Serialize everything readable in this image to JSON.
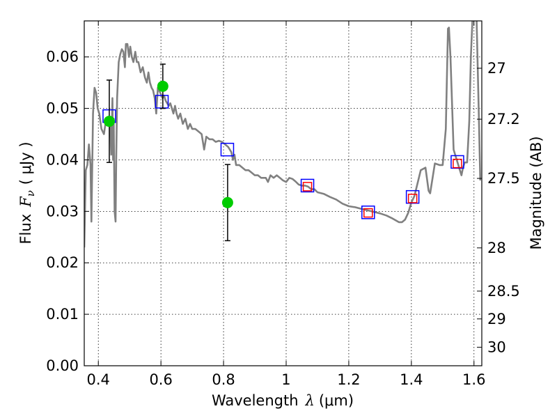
{
  "chart_data": {
    "type": "scatter",
    "xlabel": {
      "prefix": "Wavelength",
      "symbol": "λ",
      "unit": "(μm)"
    },
    "ylabel": {
      "prefix": "Flux",
      "symbol": "F",
      "subscript": "ν",
      "unit": "( μJy )"
    },
    "y2label": "Magnitude (AB)",
    "xlim": [
      0.355,
      1.625
    ],
    "ylim": [
      0.0,
      0.067
    ],
    "grid": true,
    "x_ticks": [
      0.4,
      0.6,
      0.8,
      1.0,
      1.2,
      1.4,
      1.6
    ],
    "x_tick_labels": [
      "0.4",
      "0.6",
      "0.8",
      "1",
      "1.2",
      "1.4",
      "1.6"
    ],
    "y_ticks": [
      0.0,
      0.01,
      0.02,
      0.03,
      0.04,
      0.05,
      0.06
    ],
    "y_tick_labels": [
      "0.00",
      "0.01",
      "0.02",
      "0.03",
      "0.04",
      "0.05",
      "0.06"
    ],
    "y2_ticks": [
      {
        "label": "27",
        "flux": 0.0578
      },
      {
        "label": "27.2",
        "flux": 0.0479
      },
      {
        "label": "27.5",
        "flux": 0.0364
      },
      {
        "label": "28",
        "flux": 0.0229
      },
      {
        "label": "28.5",
        "flux": 0.0145
      },
      {
        "label": "29",
        "flux": 0.0091
      },
      {
        "label": "30",
        "flux": 0.0036
      }
    ],
    "series": [
      {
        "kind": "line",
        "color": "#808080",
        "points": [
          [
            0.355,
            0.023
          ],
          [
            0.36,
            0.038
          ],
          [
            0.365,
            0.039
          ],
          [
            0.37,
            0.043
          ],
          [
            0.375,
            0.039
          ],
          [
            0.378,
            0.028
          ],
          [
            0.383,
            0.049
          ],
          [
            0.388,
            0.054
          ],
          [
            0.393,
            0.053
          ],
          [
            0.398,
            0.05
          ],
          [
            0.403,
            0.049
          ],
          [
            0.41,
            0.046
          ],
          [
            0.418,
            0.045
          ],
          [
            0.425,
            0.048
          ],
          [
            0.433,
            0.048
          ],
          [
            0.438,
            0.047
          ],
          [
            0.441,
            0.041
          ],
          [
            0.445,
            0.052
          ],
          [
            0.447,
            0.04
          ],
          [
            0.449,
            0.048
          ],
          [
            0.452,
            0.03
          ],
          [
            0.455,
            0.028
          ],
          [
            0.457,
            0.04
          ],
          [
            0.46,
            0.052
          ],
          [
            0.465,
            0.059
          ],
          [
            0.47,
            0.0605
          ],
          [
            0.475,
            0.0615
          ],
          [
            0.48,
            0.061
          ],
          [
            0.485,
            0.058
          ],
          [
            0.488,
            0.0625
          ],
          [
            0.493,
            0.0625
          ],
          [
            0.498,
            0.06
          ],
          [
            0.502,
            0.062
          ],
          [
            0.507,
            0.06
          ],
          [
            0.512,
            0.059
          ],
          [
            0.518,
            0.061
          ],
          [
            0.523,
            0.059
          ],
          [
            0.528,
            0.059
          ],
          [
            0.535,
            0.057
          ],
          [
            0.542,
            0.058
          ],
          [
            0.549,
            0.056
          ],
          [
            0.555,
            0.055
          ],
          [
            0.56,
            0.057
          ],
          [
            0.565,
            0.055
          ],
          [
            0.57,
            0.054
          ],
          [
            0.575,
            0.0535
          ],
          [
            0.58,
            0.052
          ],
          [
            0.585,
            0.049
          ],
          [
            0.59,
            0.054
          ],
          [
            0.598,
            0.053
          ],
          [
            0.605,
            0.052
          ],
          [
            0.61,
            0.0525
          ],
          [
            0.615,
            0.0515
          ],
          [
            0.62,
            0.051
          ],
          [
            0.625,
            0.0505
          ],
          [
            0.63,
            0.051
          ],
          [
            0.635,
            0.05
          ],
          [
            0.64,
            0.049
          ],
          [
            0.645,
            0.0505
          ],
          [
            0.65,
            0.049
          ],
          [
            0.655,
            0.048
          ],
          [
            0.662,
            0.049
          ],
          [
            0.67,
            0.047
          ],
          [
            0.678,
            0.048
          ],
          [
            0.686,
            0.046
          ],
          [
            0.693,
            0.047
          ],
          [
            0.7,
            0.046
          ],
          [
            0.71,
            0.046
          ],
          [
            0.72,
            0.0455
          ],
          [
            0.73,
            0.045
          ],
          [
            0.738,
            0.042
          ],
          [
            0.745,
            0.0445
          ],
          [
            0.755,
            0.044
          ],
          [
            0.765,
            0.044
          ],
          [
            0.775,
            0.0435
          ],
          [
            0.785,
            0.0437
          ],
          [
            0.795,
            0.0435
          ],
          [
            0.805,
            0.043
          ],
          [
            0.815,
            0.0425
          ],
          [
            0.825,
            0.0415
          ],
          [
            0.83,
            0.04
          ],
          [
            0.835,
            0.041
          ],
          [
            0.84,
            0.039
          ],
          [
            0.85,
            0.039
          ],
          [
            0.86,
            0.0385
          ],
          [
            0.87,
            0.038
          ],
          [
            0.88,
            0.038
          ],
          [
            0.89,
            0.0375
          ],
          [
            0.9,
            0.037
          ],
          [
            0.91,
            0.037
          ],
          [
            0.92,
            0.0365
          ],
          [
            0.93,
            0.0365
          ],
          [
            0.935,
            0.0365
          ],
          [
            0.942,
            0.0357
          ],
          [
            0.95,
            0.037
          ],
          [
            0.96,
            0.0365
          ],
          [
            0.97,
            0.037
          ],
          [
            0.98,
            0.0365
          ],
          [
            0.99,
            0.036
          ],
          [
            1.0,
            0.0357
          ],
          [
            1.01,
            0.0365
          ],
          [
            1.02,
            0.0363
          ],
          [
            1.03,
            0.0358
          ],
          [
            1.04,
            0.0352
          ],
          [
            1.05,
            0.035
          ],
          [
            1.06,
            0.035
          ],
          [
            1.07,
            0.0348
          ],
          [
            1.08,
            0.0343
          ],
          [
            1.09,
            0.0343
          ],
          [
            1.1,
            0.0337
          ],
          [
            1.12,
            0.0334
          ],
          [
            1.14,
            0.0328
          ],
          [
            1.16,
            0.0323
          ],
          [
            1.18,
            0.0315
          ],
          [
            1.2,
            0.031
          ],
          [
            1.22,
            0.0308
          ],
          [
            1.24,
            0.0305
          ],
          [
            1.26,
            0.0302
          ],
          [
            1.28,
            0.0299
          ],
          [
            1.3,
            0.0296
          ],
          [
            1.32,
            0.0292
          ],
          [
            1.34,
            0.0286
          ],
          [
            1.36,
            0.0279
          ],
          [
            1.37,
            0.0279
          ],
          [
            1.38,
            0.0284
          ],
          [
            1.39,
            0.0297
          ],
          [
            1.4,
            0.0317
          ],
          [
            1.41,
            0.033
          ],
          [
            1.43,
            0.038
          ],
          [
            1.445,
            0.0385
          ],
          [
            1.455,
            0.034
          ],
          [
            1.46,
            0.0335
          ],
          [
            1.475,
            0.0393
          ],
          [
            1.49,
            0.039
          ],
          [
            1.5,
            0.039
          ],
          [
            1.51,
            0.046
          ],
          [
            1.517,
            0.0655
          ],
          [
            1.52,
            0.0657
          ],
          [
            1.525,
            0.06
          ],
          [
            1.535,
            0.042
          ],
          [
            1.545,
            0.04
          ],
          [
            1.56,
            0.037
          ],
          [
            1.565,
            0.0385
          ],
          [
            1.57,
            0.0395
          ],
          [
            1.578,
            0.0395
          ],
          [
            1.585,
            0.0475
          ],
          [
            1.59,
            0.06
          ],
          [
            1.595,
            0.067
          ],
          [
            1.602,
            0.068
          ],
          [
            1.608,
            0.068
          ],
          [
            1.615,
            0.05
          ],
          [
            1.62,
            0.036
          ]
        ]
      },
      {
        "kind": "open-square",
        "color": "#0000ff",
        "points": [
          [
            0.435,
            0.0485
          ],
          [
            0.603,
            0.0513
          ],
          [
            0.812,
            0.042
          ],
          [
            1.068,
            0.035
          ],
          [
            1.262,
            0.0298
          ],
          [
            1.404,
            0.0328
          ],
          [
            1.547,
            0.0396
          ]
        ]
      },
      {
        "kind": "open-square",
        "color": "#ff0000",
        "points": [
          [
            1.068,
            0.0348
          ],
          [
            1.262,
            0.0297
          ],
          [
            1.404,
            0.0325
          ],
          [
            1.547,
            0.0393
          ]
        ]
      },
      {
        "kind": "point-errorbar",
        "color": "#00cc00",
        "points": [
          {
            "x": 0.435,
            "y": 0.0475,
            "err": 0.008
          },
          {
            "x": 0.606,
            "y": 0.0543,
            "err": 0.0043
          },
          {
            "x": 0.813,
            "y": 0.0317,
            "err": 0.0074
          }
        ]
      }
    ]
  }
}
